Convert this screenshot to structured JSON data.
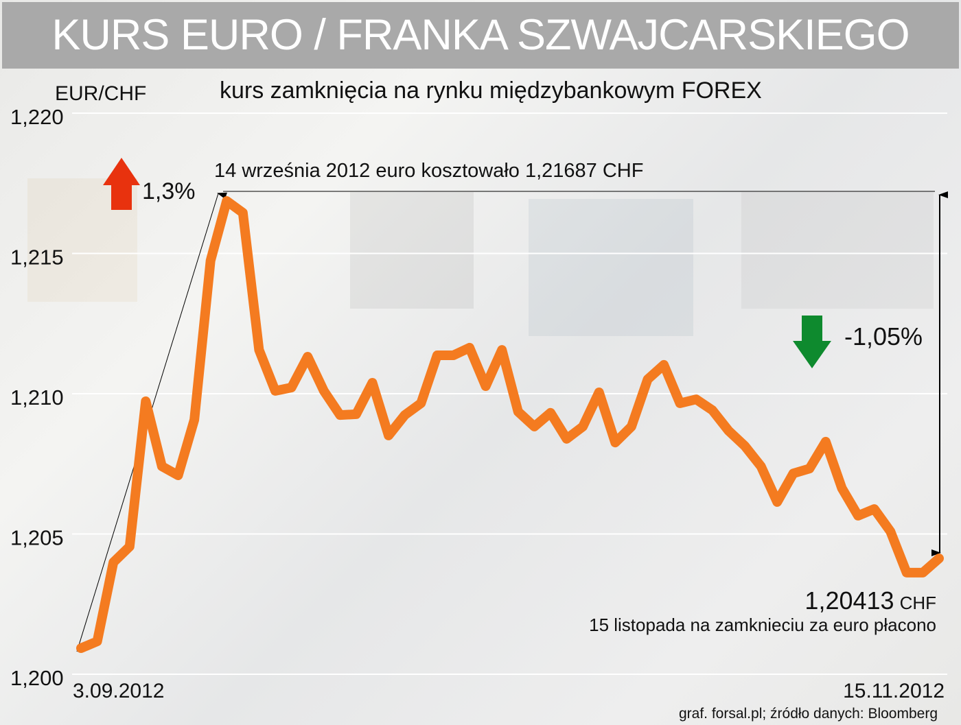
{
  "chart_data": {
    "type": "line",
    "title": "KURS EURO / FRANKA SZWAJCARSKIEGO",
    "subtitle": "kurs zamknięcia na rynku międzybankowym FOREX",
    "ylabel": "EUR/CHF",
    "ylim": [
      1.2,
      1.22
    ],
    "yticks": [
      "1,220",
      "1,215",
      "1,210",
      "1,205",
      "1,200"
    ],
    "ytick_values": [
      1.22,
      1.215,
      1.21,
      1.205,
      1.2
    ],
    "x_start_label": "3.09.2012",
    "x_end_label": "15.11.2012",
    "grid": true,
    "line_color": "#f47b20",
    "series": [
      {
        "values": [
          1.20093,
          1.20117,
          1.20399,
          1.20455,
          1.20973,
          1.20741,
          1.20709,
          1.20907,
          1.21474,
          1.21687,
          1.21645,
          1.21156,
          1.2101,
          1.21022,
          1.21132,
          1.2101,
          1.20924,
          1.20927,
          1.21039,
          1.20851,
          1.20924,
          1.20966,
          1.21137,
          1.21137,
          1.21164,
          1.21027,
          1.21156,
          1.20936,
          1.20883,
          1.20932,
          1.20839,
          1.20883,
          1.21005,
          1.20826,
          1.20883,
          1.21051,
          1.21103,
          1.20966,
          1.2098,
          1.20941,
          1.20868,
          1.20814,
          1.20741,
          1.20614,
          1.20716,
          1.20733,
          1.20829,
          1.20663,
          1.20565,
          1.20589,
          1.20509,
          1.20362,
          1.20362,
          1.20413
        ]
      }
    ],
    "annotations": {
      "rise_pct": "1,3%",
      "rise_color": "#e8320e",
      "peak_text": "14 września 2012 euro kosztowało 1,21687 CHF",
      "fall_pct": "-1,05%",
      "fall_color": "#0e8a2e",
      "last_value": "1,20413",
      "last_unit": "CHF",
      "last_text": "15 listopada na zamknieciu za euro płacono"
    },
    "source": "graf. forsal.pl; źródło danych: Bloomberg"
  }
}
